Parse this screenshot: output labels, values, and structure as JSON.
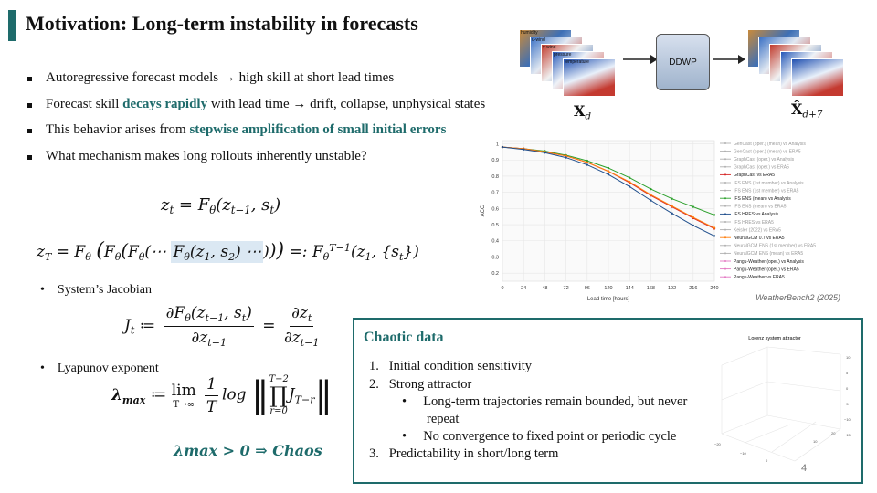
{
  "title": "Motivation: Long-term instability in forecasts",
  "bullets": [
    {
      "pre": "Autoregressive forecast models → high skill at short lead times",
      "hl": "",
      "post": ""
    },
    {
      "pre": "Forecast skill ",
      "hl": "decays rapidly",
      "post": " with lead time → drift, collapse, unphysical states"
    },
    {
      "pre": "This behavior arises from ",
      "hl": "stepwise amplification of small initial errors",
      "post": ""
    },
    {
      "pre": "What mechanism makes long rollouts inherently unstable?",
      "hl": "",
      "post": ""
    }
  ],
  "sub_bullets": {
    "jacobian": "System’s Jacobian",
    "lyapunov": "Lyapunov exponent"
  },
  "equations": {
    "eq1_lhs": "z",
    "eq1_rhs": "= F",
    "chaos": "λmax > 0 ⇒ Chaos"
  },
  "diagram": {
    "model_label": "DDWP",
    "input_label": "X",
    "input_sub": "d",
    "output_label": "X̂",
    "output_sub": "d+7",
    "stack_labels": [
      "humidity",
      "u-wind",
      "v-wind",
      "pressure",
      "temperature"
    ]
  },
  "chart_data": {
    "type": "line",
    "title": "",
    "xlabel": "Lead time [hours]",
    "ylabel": "ACC",
    "x": [
      0,
      24,
      48,
      72,
      96,
      120,
      144,
      168,
      192,
      216,
      240
    ],
    "xticks": [
      0,
      24,
      48,
      72,
      96,
      120,
      144,
      168,
      192,
      216,
      240
    ],
    "yticks": [
      0.2,
      0.3,
      0.4,
      0.5,
      0.6,
      0.7,
      0.8,
      0.9,
      1
    ],
    "xlim": [
      0,
      240
    ],
    "ylim": [
      0.15,
      1.02
    ],
    "legend_position": "right",
    "legend": [
      "GenCast (oper.) (mean) vs Analysis",
      "GenCast (oper.) (mean) vs ERA5",
      "GraphCast (oper.) vs Analysis",
      "GraphCast (oper.) vs ERA5",
      "GraphCast vs ERA5",
      "IFS ENS (1st member) vs Analysis",
      "IFS ENS (1st member) vs ERA5",
      "IFS ENS (mean) vs Analysis",
      "IFS ENS (mean) vs ERA5",
      "IFS HRES vs Analysis",
      "IFS HRES vs ERA5",
      "Keisler (2022) vs ERA5",
      "NeuralGCM 0.7 vs ERA5",
      "NeuralGCM ENS (1st member) vs ERA5",
      "NeuralGCM ENS (mean) vs ERA5",
      "Pangu-Weather (oper.) vs Analysis",
      "Pangu-Weather (oper.) vs ERA5",
      "Pangu-Weather vs ERA5"
    ],
    "series": [
      {
        "name": "IFS ENS (mean) vs Analysis",
        "color": "#2ca02c",
        "values": [
          0.98,
          0.97,
          0.955,
          0.93,
          0.895,
          0.85,
          0.79,
          0.72,
          0.66,
          0.61,
          0.56
        ]
      },
      {
        "name": "GraphCast vs ERA5",
        "color": "#d62728",
        "values": [
          0.98,
          0.97,
          0.95,
          0.925,
          0.885,
          0.83,
          0.76,
          0.68,
          0.61,
          0.54,
          0.475
        ]
      },
      {
        "name": "NeuralGCM 0.7 vs ERA5",
        "color": "#ff7f0e",
        "values": [
          0.98,
          0.97,
          0.95,
          0.925,
          0.885,
          0.83,
          0.765,
          0.685,
          0.615,
          0.545,
          0.48
        ]
      },
      {
        "name": "IFS HRES vs Analysis",
        "color": "#1f4e8c",
        "values": [
          0.98,
          0.965,
          0.945,
          0.915,
          0.87,
          0.81,
          0.735,
          0.65,
          0.57,
          0.495,
          0.43
        ]
      }
    ],
    "source": "WeatherBench2 (2025)"
  },
  "chaotic": {
    "title": "Chaotic data",
    "items": [
      {
        "n": "1.",
        "text": "Initial condition sensitivity"
      },
      {
        "n": "2.",
        "text": "Strong attractor"
      },
      {
        "n": "3.",
        "text": "Predictability in short/long term"
      }
    ],
    "subitems": [
      "Long-term trajectories remain bounded, but never",
      "repeat",
      "No convergence to fixed point or periodic cycle"
    ],
    "lorenz_title": "Lorenz system attractor",
    "lorenz_ticks": [
      "10",
      "5",
      "0",
      "−5",
      "−10",
      "−15",
      "−20",
      "−10",
      "0",
      "10",
      "20"
    ]
  },
  "page_number": "4"
}
